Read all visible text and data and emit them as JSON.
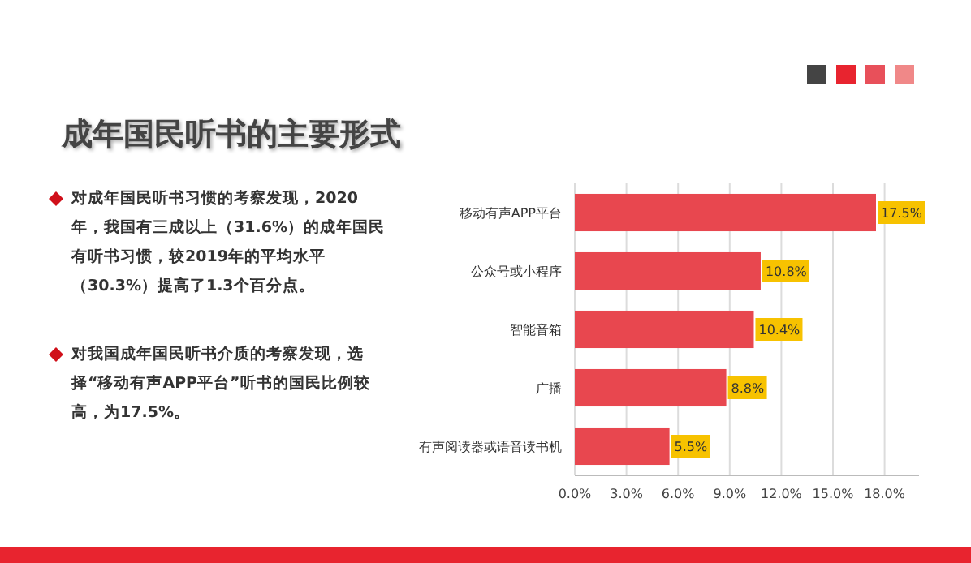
{
  "chart_data": {
    "type": "bar",
    "orientation": "horizontal",
    "title": "成年国民听书的主要形式",
    "categories": [
      "移动有声APP平台",
      "公众号或小程序",
      "智能音箱",
      "广播",
      "有声阅读器或语音读书机"
    ],
    "values": [
      17.5,
      10.8,
      10.4,
      8.8,
      5.5
    ],
    "value_labels": [
      "17.5%",
      "10.8%",
      "10.4%",
      "8.8%",
      "5.5%"
    ],
    "color": "#e8474f",
    "xlim": [
      0,
      20
    ],
    "xticks": [
      {
        "value": 0,
        "label": "0.0%"
      },
      {
        "value": 3,
        "label": "3.0%"
      },
      {
        "value": 6,
        "label": "6.0%"
      },
      {
        "value": 9,
        "label": "9.0%"
      },
      {
        "value": 12,
        "label": "12.0%"
      },
      {
        "value": 15,
        "label": "15.0%"
      },
      {
        "value": 18,
        "label": "18.0%"
      }
    ],
    "grid": "x",
    "annotations": [
      "对成年国民听书习惯的考察发现，2020年，我国有三成以上（31.6%）的成年国民有听书习惯，较2019年的平均水平（30.3%）提高了1.3个百分点。",
      "对我国成年国民听书介质的考察发现，选择“移动有声APP平台”听书的国民比例较高，为17.5%。"
    ]
  }
}
